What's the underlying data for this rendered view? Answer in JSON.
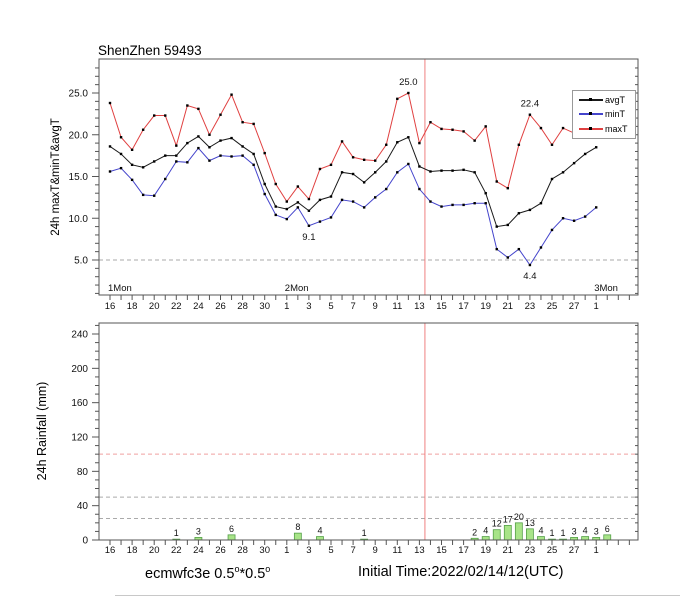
{
  "header": {
    "station_title": "ShenZhen 59493"
  },
  "temp_panel": {
    "ylabel": "24h maxT&minT&avgT",
    "ytick_labels": [
      "5.0",
      "10.0",
      "15.0",
      "20.0",
      "25.0"
    ],
    "legend": [
      {
        "label": "avgT",
        "color": "#1a1a1a"
      },
      {
        "label": "minT",
        "color": "#4444cc"
      },
      {
        "label": "maxT",
        "color": "#e04040"
      }
    ]
  },
  "rain_panel": {
    "ylabel": "24h Rainfall (mm)",
    "ytick_labels": [
      "0",
      "40",
      "80",
      "120",
      "160",
      "200",
      "240"
    ]
  },
  "footer": {
    "model": {
      "base1": "ecmwfc3e 0.5",
      "sup1": "o",
      "base2": "*0.5",
      "sup2": "o"
    },
    "initial_time": "Initial Time:2022/02/14/12(UTC)"
  },
  "chart_data": [
    {
      "type": "line",
      "title": "ShenZhen 59493",
      "ylabel": "24h maxT&minT&avgT",
      "ylim": [
        0.8,
        29.2
      ],
      "yticks": [
        5,
        10,
        15,
        20,
        25
      ],
      "dashed_gridline_value": 5,
      "grid_color": "#aaaaaa",
      "legend_position": "upper right",
      "categories": [
        "16 Jan",
        "17 Jan",
        "18 Jan",
        "19 Jan",
        "20 Jan",
        "21 Jan",
        "22 Jan",
        "23 Jan",
        "24 Jan",
        "25 Jan",
        "26 Jan",
        "27 Jan",
        "28 Jan",
        "29 Jan",
        "30 Jan",
        "31 Jan",
        "1 Feb",
        "2 Feb",
        "3 Feb",
        "4 Feb",
        "5 Feb",
        "6 Feb",
        "7 Feb",
        "8 Feb",
        "9 Feb",
        "10 Feb",
        "11 Feb",
        "12 Feb",
        "13 Feb",
        "14 Feb",
        "15 Feb",
        "16 Feb",
        "17 Feb",
        "18 Feb",
        "19 Feb",
        "20 Feb",
        "21 Feb",
        "22 Feb",
        "23 Feb",
        "24 Feb",
        "25 Feb",
        "26 Feb",
        "27 Feb",
        "28 Feb",
        "1 Mar"
      ],
      "series": [
        {
          "name": "maxT",
          "color": "#e04040",
          "values": [
            23.8,
            19.7,
            18.2,
            20.6,
            22.3,
            22.3,
            18.7,
            23.5,
            23.1,
            20.0,
            22.4,
            24.8,
            21.5,
            21.3,
            17.8,
            14.1,
            12.0,
            13.8,
            12.3,
            15.9,
            16.4,
            19.2,
            17.3,
            17.0,
            16.9,
            18.8,
            24.3,
            25.0,
            19.0,
            21.5,
            20.7,
            20.6,
            20.4,
            19.3,
            21.0,
            14.4,
            13.6,
            18.8,
            22.4,
            20.8,
            18.8,
            20.8,
            20.2,
            21.0,
            21.9
          ]
        },
        {
          "name": "avgT",
          "color": "#1a1a1a",
          "values": [
            18.6,
            17.7,
            16.4,
            16.1,
            16.8,
            17.5,
            17.5,
            19.0,
            19.8,
            18.5,
            19.3,
            19.6,
            18.6,
            17.7,
            14.1,
            11.4,
            11.1,
            11.9,
            10.9,
            12.2,
            12.6,
            15.5,
            15.3,
            14.3,
            15.5,
            16.8,
            19.1,
            19.7,
            16.2,
            15.6,
            15.7,
            15.7,
            15.8,
            15.5,
            13.0,
            9.0,
            9.2,
            10.6,
            11.0,
            11.8,
            14.7,
            15.5,
            16.6,
            17.7,
            18.5
          ]
        },
        {
          "name": "minT",
          "color": "#4444cc",
          "values": [
            15.6,
            16.0,
            14.6,
            12.8,
            12.7,
            14.7,
            16.8,
            16.7,
            18.4,
            16.9,
            17.5,
            17.4,
            17.5,
            16.4,
            12.9,
            10.4,
            9.9,
            11.3,
            9.1,
            9.6,
            10.1,
            12.2,
            12.0,
            11.3,
            12.5,
            13.5,
            15.5,
            16.5,
            13.5,
            12.0,
            11.4,
            11.6,
            11.6,
            11.8,
            11.8,
            6.3,
            5.3,
            6.3,
            4.4,
            6.5,
            8.6,
            10.0,
            9.7,
            10.2,
            11.3
          ]
        }
      ],
      "annotations": [
        {
          "text": "25.0",
          "day": "12 Feb",
          "day_index": 27,
          "value": 25.0,
          "placement": "above"
        },
        {
          "text": "22.4",
          "day": "23 Feb",
          "day_index": 38,
          "value": 22.4,
          "placement": "above"
        },
        {
          "text": "9.1",
          "day": "3 Feb",
          "day_index": 18,
          "value": 9.1,
          "placement": "below"
        },
        {
          "text": "4.4",
          "day": "23 Feb",
          "day_index": 38,
          "value": 4.4,
          "placement": "below"
        }
      ],
      "annotation_color": "#2233cc",
      "month_labels": [
        {
          "text": "1Mon",
          "day_index": 0
        },
        {
          "text": "2Mon",
          "day_index": 16
        },
        {
          "text": "3Mon",
          "day_index": 44
        }
      ],
      "month_label_color": "#a040d0",
      "vline_day": "14 Feb (initial time)",
      "vline_day_index": 28.5,
      "vline_color": "#f08080",
      "marker_color": "#000000"
    },
    {
      "type": "bar",
      "ylabel": "24h Rainfall (mm)",
      "ylim": [
        0,
        253
      ],
      "yticks": [
        0,
        40,
        80,
        120,
        160,
        200,
        240
      ],
      "gridlines": [
        {
          "value": 25,
          "color": "#aaaaaa"
        },
        {
          "value": 50,
          "color": "#aaaaaa"
        },
        {
          "value": 100,
          "color": "#f0a0a0"
        }
      ],
      "bar_color": "#a8e488",
      "bar_edge_color": "#55a048",
      "label_color": "#b44cc8",
      "vline_day_index": 28.5,
      "vline_color": "#f08080",
      "bars": [
        {
          "day": "22 Jan",
          "day_index": 6,
          "value": 1
        },
        {
          "day": "24 Jan",
          "day_index": 8,
          "value": 3
        },
        {
          "day": "27 Jan",
          "day_index": 11,
          "value": 6
        },
        {
          "day": "2 Feb",
          "day_index": 17,
          "value": 8
        },
        {
          "day": "4 Feb",
          "day_index": 19,
          "value": 4
        },
        {
          "day": "8 Feb",
          "day_index": 23,
          "value": 1
        },
        {
          "day": "18 Feb",
          "day_index": 33,
          "value": 2
        },
        {
          "day": "19 Feb",
          "day_index": 34,
          "value": 4
        },
        {
          "day": "20 Feb",
          "day_index": 35,
          "value": 12
        },
        {
          "day": "21 Feb",
          "day_index": 36,
          "value": 17
        },
        {
          "day": "22 Feb",
          "day_index": 37,
          "value": 20
        },
        {
          "day": "23 Feb",
          "day_index": 38,
          "value": 13
        },
        {
          "day": "24 Feb",
          "day_index": 39,
          "value": 4
        },
        {
          "day": "25 Feb",
          "day_index": 40,
          "value": 1
        },
        {
          "day": "26 Feb",
          "day_index": 41,
          "value": 1
        },
        {
          "day": "27 Feb",
          "day_index": 42,
          "value": 3
        },
        {
          "day": "28 Feb",
          "day_index": 43,
          "value": 4
        },
        {
          "day": "1 Mar",
          "day_index": 44,
          "value": 3
        },
        {
          "day": "2 Mar",
          "day_index": 45,
          "value": 6
        }
      ]
    }
  ]
}
